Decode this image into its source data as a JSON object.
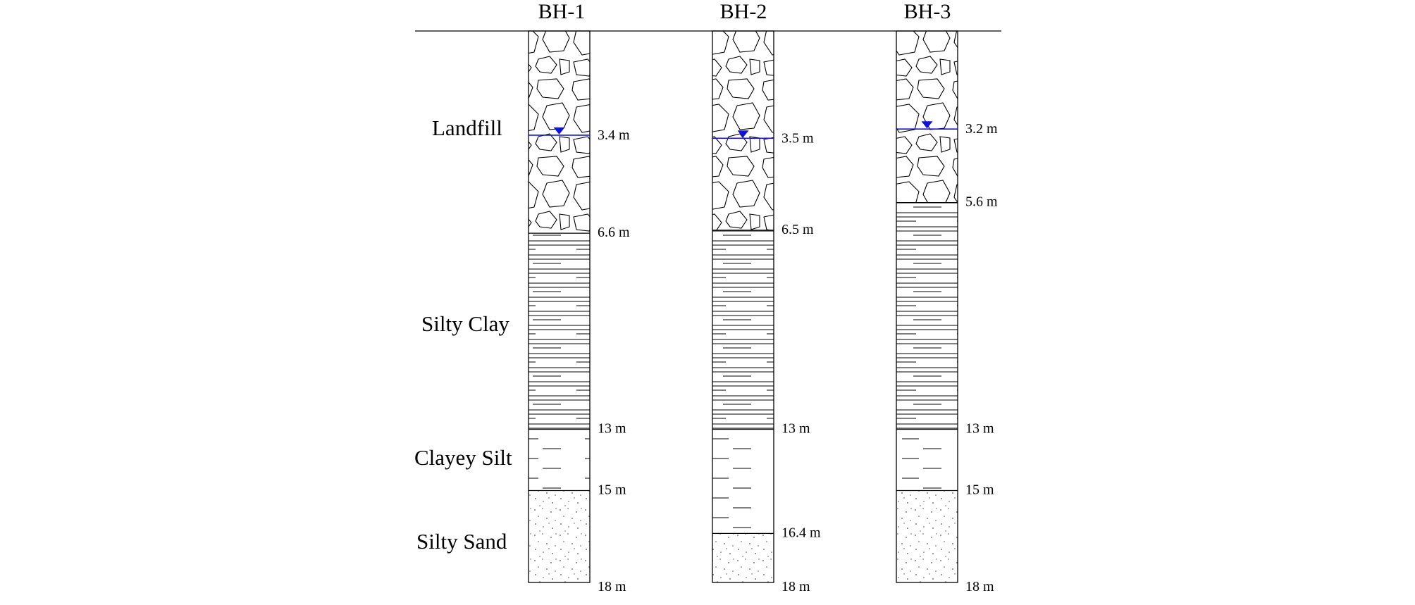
{
  "soil_labels": {
    "landfill": "Landfill",
    "silty_clay": "Silty Clay",
    "clayey_silt": "Clayey Silt",
    "silty_sand": "Silty Sand"
  },
  "depth_unit": "m",
  "colors": {
    "water_table": "#1010e0",
    "lines": "#000000",
    "sand_dots": "#555555"
  },
  "boreholes": [
    {
      "name": "BH-1",
      "water_table_depth": 3.4,
      "water_table_label": "3.4 m",
      "layers": [
        {
          "soil": "Landfill",
          "top": 0,
          "bottom": 6.6
        },
        {
          "soil": "Silty Clay",
          "top": 6.6,
          "bottom": 13
        },
        {
          "soil": "Clayey Silt",
          "top": 13,
          "bottom": 15
        },
        {
          "soil": "Silty Sand",
          "top": 15,
          "bottom": 18
        }
      ],
      "boundary_labels": [
        "6.6 m",
        "13 m",
        "15 m",
        "18 m"
      ]
    },
    {
      "name": "BH-2",
      "water_table_depth": 3.5,
      "water_table_label": "3.5 m",
      "layers": [
        {
          "soil": "Landfill",
          "top": 0,
          "bottom": 6.5
        },
        {
          "soil": "Silty Clay",
          "top": 6.5,
          "bottom": 13
        },
        {
          "soil": "Clayey Silt",
          "top": 13,
          "bottom": 16.4
        },
        {
          "soil": "Silty Sand",
          "top": 16.4,
          "bottom": 18
        }
      ],
      "boundary_labels": [
        "6.5 m",
        "13 m",
        "16.4 m",
        "18 m"
      ]
    },
    {
      "name": "BH-3",
      "water_table_depth": 3.2,
      "water_table_label": "3.2 m",
      "layers": [
        {
          "soil": "Landfill",
          "top": 0,
          "bottom": 5.6
        },
        {
          "soil": "Silty Clay",
          "top": 5.6,
          "bottom": 13
        },
        {
          "soil": "Clayey Silt",
          "top": 13,
          "bottom": 15
        },
        {
          "soil": "Silty Sand",
          "top": 15,
          "bottom": 18
        }
      ],
      "boundary_labels": [
        "5.6 m",
        "13 m",
        "15 m",
        "18 m"
      ]
    }
  ]
}
